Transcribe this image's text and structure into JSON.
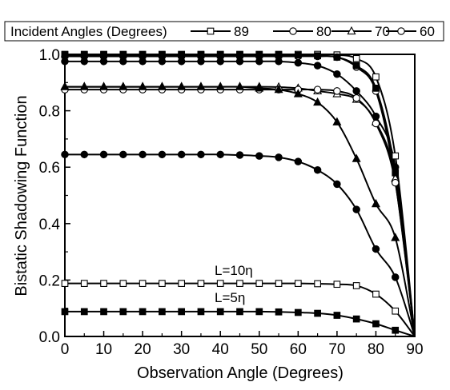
{
  "chart_data": {
    "type": "line",
    "xlabel": "Observation Angle (Degrees)",
    "ylabel": "Bistatic Shadowing Function",
    "xlim": [
      0,
      90
    ],
    "ylim": [
      0.0,
      1.0
    ],
    "x_ticks": [
      "0",
      "10",
      "20",
      "30",
      "40",
      "50",
      "60",
      "70",
      "80",
      "90"
    ],
    "y_ticks": [
      "0.0",
      "0.2",
      "0.4",
      "0.6",
      "0.8",
      "1.0"
    ],
    "grid": false,
    "legend": {
      "title": "Incident Angles (Degrees)",
      "placement": "top",
      "entries": [
        {
          "label": "89",
          "marker": "square-open"
        },
        {
          "label": "80",
          "marker": "circle-open"
        },
        {
          "label": "70",
          "marker": "triangle-open"
        },
        {
          "label": "60",
          "marker": "circle-open"
        }
      ]
    },
    "annotations": [
      "L=10η",
      "L=5η"
    ],
    "series": [
      {
        "group": "L=10η",
        "marker": "square-open",
        "x": [
          0,
          5,
          10,
          15,
          20,
          25,
          30,
          35,
          40,
          45,
          50,
          55,
          60,
          65,
          70,
          75,
          80,
          85,
          90
        ],
        "y": [
          1.0,
          1.0,
          1.0,
          1.0,
          1.0,
          1.0,
          1.0,
          1.0,
          1.0,
          1.0,
          1.0,
          1.0,
          1.0,
          1.0,
          0.998,
          0.985,
          0.92,
          0.64,
          0.0
        ]
      },
      {
        "group": "L=10η",
        "marker": "circle-open",
        "x": [
          0,
          5,
          10,
          15,
          20,
          25,
          30,
          35,
          40,
          45,
          50,
          55,
          60,
          65,
          70,
          75,
          80,
          85,
          90
        ],
        "y": [
          0.993,
          0.993,
          0.993,
          0.993,
          0.993,
          0.993,
          0.993,
          0.993,
          0.993,
          0.993,
          0.993,
          0.993,
          0.993,
          0.993,
          0.99,
          0.955,
          0.87,
          0.55,
          0.0
        ]
      },
      {
        "group": "L=10η",
        "marker": "triangle-open",
        "x": [
          0,
          5,
          10,
          15,
          20,
          25,
          30,
          35,
          40,
          45,
          50,
          55,
          60,
          65,
          70,
          75,
          80,
          85,
          90
        ],
        "y": [
          0.885,
          0.885,
          0.885,
          0.885,
          0.885,
          0.885,
          0.885,
          0.885,
          0.885,
          0.885,
          0.885,
          0.884,
          0.88,
          0.87,
          0.86,
          0.84,
          0.76,
          0.56,
          0.0
        ]
      },
      {
        "group": "L=10η",
        "marker": "circle-open",
        "x": [
          0,
          5,
          10,
          15,
          20,
          25,
          30,
          35,
          40,
          45,
          50,
          55,
          60,
          65,
          70,
          75,
          80,
          85,
          90
        ],
        "y": [
          0.875,
          0.875,
          0.875,
          0.875,
          0.875,
          0.875,
          0.875,
          0.875,
          0.875,
          0.875,
          0.875,
          0.875,
          0.875,
          0.875,
          0.87,
          0.845,
          0.755,
          0.545,
          0.0
        ]
      },
      {
        "group": "L=5η",
        "marker": "square-filled",
        "x": [
          0,
          5,
          10,
          15,
          20,
          25,
          30,
          35,
          40,
          45,
          50,
          55,
          60,
          65,
          70,
          75,
          80,
          85,
          90
        ],
        "y": [
          0.998,
          0.998,
          0.998,
          0.998,
          0.998,
          0.998,
          0.998,
          0.998,
          0.998,
          0.998,
          0.998,
          0.998,
          0.997,
          0.995,
          0.99,
          0.96,
          0.88,
          0.58,
          0.0
        ]
      },
      {
        "group": "L=5η",
        "marker": "circle-filled",
        "x": [
          0,
          5,
          10,
          15,
          20,
          25,
          30,
          35,
          40,
          45,
          50,
          55,
          60,
          65,
          70,
          75,
          80,
          85,
          90
        ],
        "y": [
          0.975,
          0.975,
          0.975,
          0.975,
          0.975,
          0.975,
          0.975,
          0.975,
          0.975,
          0.975,
          0.975,
          0.975,
          0.97,
          0.96,
          0.93,
          0.87,
          0.78,
          0.6,
          0.0
        ]
      },
      {
        "group": "L=5η",
        "marker": "triangle-filled",
        "x": [
          0,
          5,
          10,
          15,
          20,
          25,
          30,
          35,
          40,
          45,
          50,
          55,
          60,
          65,
          70,
          75,
          80,
          85,
          90
        ],
        "y": [
          0.885,
          0.885,
          0.885,
          0.885,
          0.885,
          0.885,
          0.885,
          0.885,
          0.885,
          0.885,
          0.88,
          0.875,
          0.86,
          0.83,
          0.76,
          0.63,
          0.47,
          0.35,
          0.0
        ]
      },
      {
        "group": "L=5η",
        "marker": "circle-filled",
        "x": [
          0,
          5,
          10,
          15,
          20,
          25,
          30,
          35,
          40,
          45,
          50,
          55,
          60,
          65,
          70,
          75,
          80,
          85,
          90
        ],
        "y": [
          0.645,
          0.645,
          0.645,
          0.645,
          0.645,
          0.645,
          0.645,
          0.645,
          0.645,
          0.643,
          0.64,
          0.635,
          0.62,
          0.59,
          0.54,
          0.45,
          0.31,
          0.21,
          0.0
        ]
      },
      {
        "group": "L=10η",
        "marker": "square-open",
        "x": [
          0,
          5,
          10,
          15,
          20,
          25,
          30,
          35,
          40,
          45,
          50,
          55,
          60,
          65,
          70,
          75,
          80,
          85,
          90
        ],
        "y": [
          0.188,
          0.188,
          0.188,
          0.188,
          0.188,
          0.188,
          0.188,
          0.188,
          0.188,
          0.188,
          0.188,
          0.188,
          0.188,
          0.187,
          0.185,
          0.18,
          0.15,
          0.09,
          0.0
        ]
      },
      {
        "group": "L=5η",
        "marker": "square-filled",
        "x": [
          0,
          5,
          10,
          15,
          20,
          25,
          30,
          35,
          40,
          45,
          50,
          55,
          60,
          65,
          70,
          75,
          80,
          85,
          90
        ],
        "y": [
          0.088,
          0.088,
          0.088,
          0.088,
          0.088,
          0.088,
          0.088,
          0.088,
          0.088,
          0.088,
          0.088,
          0.087,
          0.085,
          0.082,
          0.075,
          0.062,
          0.045,
          0.022,
          0.0
        ]
      }
    ]
  }
}
